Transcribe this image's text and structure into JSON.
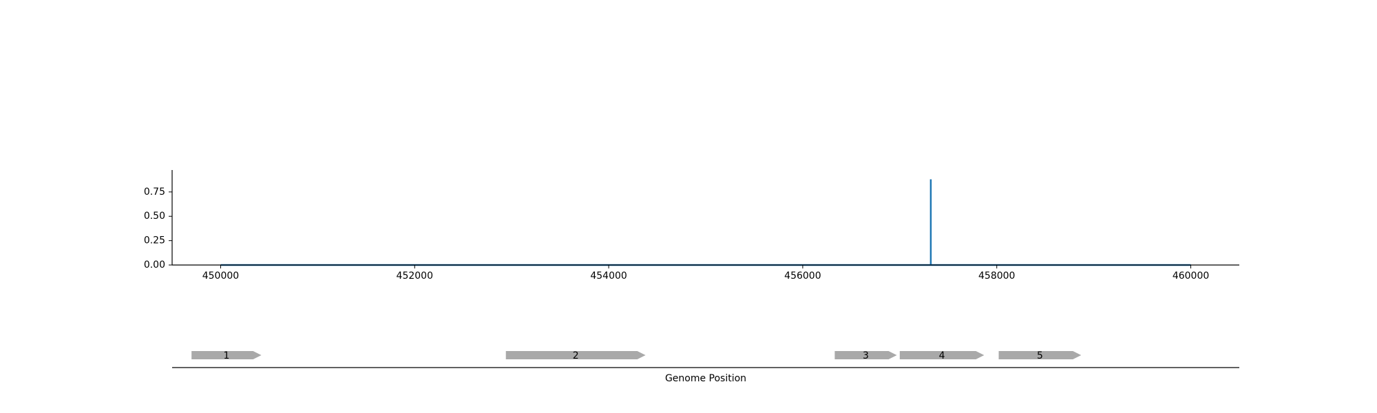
{
  "chart_data": [
    {
      "type": "line",
      "title": "",
      "xlabel": "",
      "ylabel": "",
      "xlim": [
        449500,
        460500
      ],
      "ylim": [
        0,
        0.975
      ],
      "x_ticks": [
        "450000",
        "452000",
        "454000",
        "456000",
        "458000",
        "460000"
      ],
      "y_ticks": [
        "0.00",
        "0.25",
        "0.50",
        "0.75"
      ],
      "grid": false,
      "color": "#1f77b4",
      "series": [
        {
          "x": [
            450000,
            457320,
            457320,
            457320,
            460000
          ],
          "y": [
            0.0,
            0.0,
            0.88,
            0.0,
            0.0
          ]
        }
      ]
    },
    {
      "type": "gene_track",
      "xlabel": "Genome Position",
      "xlim": [
        449500,
        460500
      ],
      "color": "#a9a9a9",
      "genes": [
        {
          "label": "1",
          "start": 449700,
          "end": 450420,
          "strand": "+"
        },
        {
          "label": "2",
          "start": 452940,
          "end": 454380,
          "strand": "+"
        },
        {
          "label": "3",
          "start": 456330,
          "end": 456970,
          "strand": "+"
        },
        {
          "label": "4",
          "start": 457000,
          "end": 457870,
          "strand": "+"
        },
        {
          "label": "5",
          "start": 458020,
          "end": 458870,
          "strand": "+"
        }
      ]
    }
  ]
}
